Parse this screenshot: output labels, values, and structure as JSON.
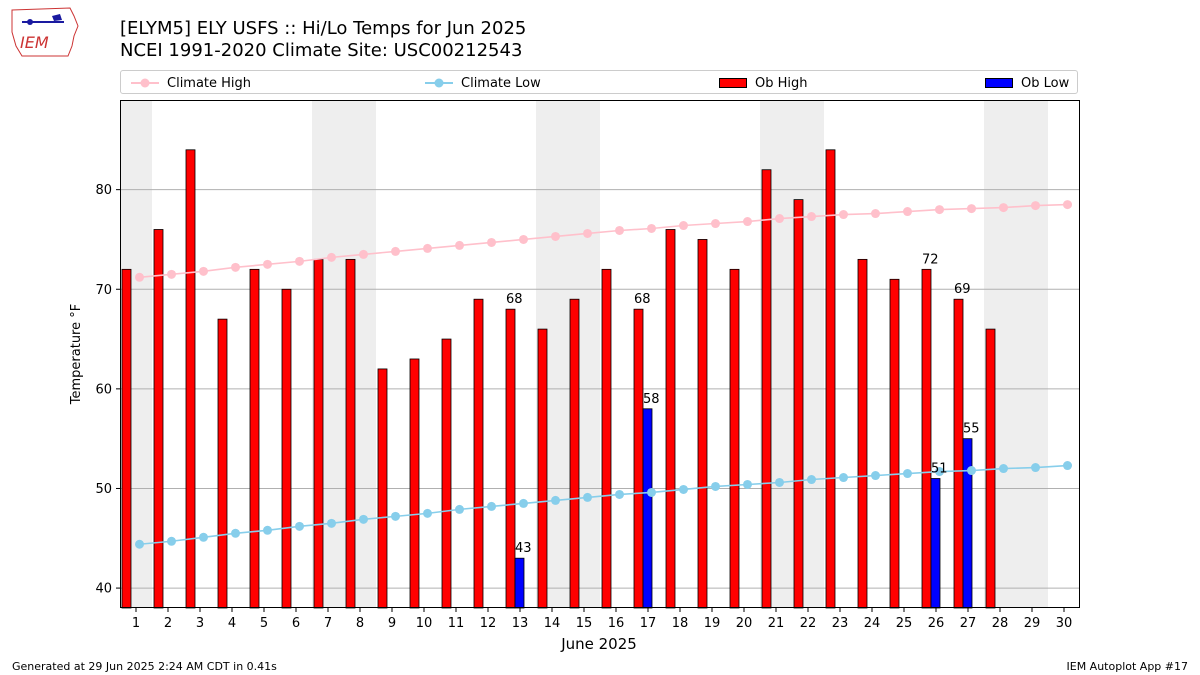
{
  "header": {
    "logo_text": "IEM",
    "title_line1": "[ELYM5] ELY USFS :: Hi/Lo Temps for Jun 2025",
    "title_line2": "NCEI 1991-2020 Climate Site: USC00212543"
  },
  "legend": {
    "climate_high": "Climate High",
    "climate_low": "Climate Low",
    "ob_high": "Ob High",
    "ob_low": "Ob Low"
  },
  "footer": {
    "generated": "Generated at 29 Jun 2025 2:24 AM CDT in 0.41s",
    "app": "IEM Autoplot App #17"
  },
  "colors": {
    "climate_high": "#ffc0cb",
    "climate_low": "#87ceeb",
    "ob_high": "#ff0000",
    "ob_low": "#0000ff",
    "weekend_shade": "#eeeeee",
    "grid": "#b0b0b0"
  },
  "chart_data": {
    "type": "bar",
    "title": "[ELYM5] ELY USFS :: Hi/Lo Temps for Jun 2025",
    "subtitle": "NCEI 1991-2020 Climate Site: USC00212543",
    "xlabel": "June 2025",
    "ylabel": "Temperature °F",
    "ylim": [
      38,
      89
    ],
    "yticks": [
      40,
      50,
      60,
      70,
      80
    ],
    "grid": "horizontal",
    "legend_position": "top",
    "x": [
      1,
      2,
      3,
      4,
      5,
      6,
      7,
      8,
      9,
      10,
      11,
      12,
      13,
      14,
      15,
      16,
      17,
      18,
      19,
      20,
      21,
      22,
      23,
      24,
      25,
      26,
      27,
      28,
      29,
      30
    ],
    "shaded_days": [
      [
        1,
        1
      ],
      [
        7,
        8
      ],
      [
        14,
        15
      ],
      [
        21,
        22
      ],
      [
        28,
        29
      ]
    ],
    "series": [
      {
        "name": "Ob High",
        "kind": "bar",
        "values": [
          72,
          76,
          84,
          67,
          72,
          70,
          73,
          73,
          62,
          63,
          65,
          69,
          68,
          66,
          69,
          72,
          68,
          76,
          75,
          72,
          82,
          79,
          84,
          73,
          71,
          72,
          69,
          66,
          null,
          null
        ]
      },
      {
        "name": "Ob Low",
        "kind": "bar",
        "values": [
          null,
          null,
          null,
          null,
          null,
          null,
          null,
          null,
          null,
          null,
          null,
          null,
          43,
          null,
          null,
          null,
          58,
          null,
          null,
          null,
          null,
          null,
          null,
          null,
          null,
          51,
          55,
          null,
          null,
          null
        ]
      },
      {
        "name": "Climate High",
        "kind": "line",
        "values": [
          71.2,
          71.5,
          71.8,
          72.2,
          72.5,
          72.8,
          73.2,
          73.5,
          73.8,
          74.1,
          74.4,
          74.7,
          75.0,
          75.3,
          75.6,
          75.9,
          76.1,
          76.4,
          76.6,
          76.8,
          77.1,
          77.3,
          77.5,
          77.6,
          77.8,
          78.0,
          78.1,
          78.2,
          78.4,
          78.5
        ]
      },
      {
        "name": "Climate Low",
        "kind": "line",
        "values": [
          44.4,
          44.7,
          45.1,
          45.5,
          45.8,
          46.2,
          46.5,
          46.9,
          47.2,
          47.5,
          47.9,
          48.2,
          48.5,
          48.8,
          49.1,
          49.4,
          49.6,
          49.9,
          50.2,
          50.4,
          50.6,
          50.9,
          51.1,
          51.3,
          51.5,
          51.7,
          51.8,
          52.0,
          52.1,
          52.3
        ]
      }
    ],
    "annotations": [
      {
        "day": 13,
        "text": "68",
        "series": "Ob High"
      },
      {
        "day": 17,
        "text": "68",
        "series": "Ob High"
      },
      {
        "day": 26,
        "text": "72",
        "series": "Ob High"
      },
      {
        "day": 27,
        "text": "69",
        "series": "Ob High"
      },
      {
        "day": 13,
        "text": "43",
        "series": "Ob Low"
      },
      {
        "day": 17,
        "text": "58",
        "series": "Ob Low"
      },
      {
        "day": 26,
        "text": "51",
        "series": "Ob Low"
      },
      {
        "day": 27,
        "text": "55",
        "series": "Ob Low"
      }
    ]
  }
}
